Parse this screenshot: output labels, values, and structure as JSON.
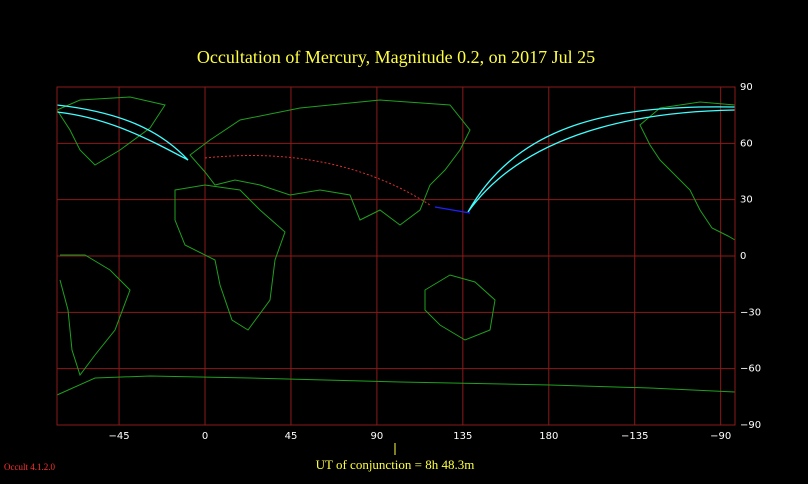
{
  "map": {
    "title": "Occultation  of  Mercury,      Magnitude 0.2,   on  2017 Jul 25",
    "xlim": [
      -77.5,
      277.5
    ],
    "ylim": [
      -90,
      90
    ],
    "xticks": [
      {
        "value": -45,
        "label": "−45"
      },
      0,
      45,
      90,
      135,
      180,
      {
        "value": 225,
        "label": "−135"
      },
      {
        "value": 270,
        "label": "−90"
      }
    ],
    "yticks": [
      90,
      60,
      30,
      0,
      {
        "value": -30,
        "label": "−30"
      },
      {
        "value": -60,
        "label": "−60"
      },
      {
        "value": -90,
        "label": "−90"
      }
    ],
    "grid": true,
    "grid_color": "#8b1a1a",
    "conjunction_label": "UT of conjunction =  8h 48.3m",
    "version": "Occult 4.1.2.0"
  }
}
